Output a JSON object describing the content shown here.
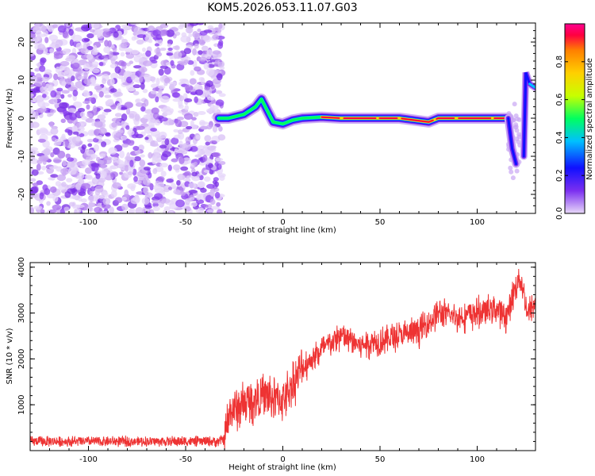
{
  "title": "KOM5.2026.053.11.07.G03",
  "chart_data": [
    {
      "type": "heatmap",
      "name": "spectrogram",
      "xlabel": "Height of straight line (km)",
      "ylabel": "Frequency (Hz)",
      "xlim": [
        -130,
        130
      ],
      "ylim": [
        -25,
        25
      ],
      "xticks": [
        "-100",
        "-50",
        "0",
        "50",
        "100"
      ],
      "yticks": [
        "-20",
        "-10",
        "0",
        "10",
        "20"
      ],
      "colorbar": {
        "label": "Normalized spectral amplitude",
        "range": [
          0.0,
          1.0
        ],
        "ticks": [
          "0.0",
          "0.2",
          "0.4",
          "0.6",
          "0.8"
        ],
        "colormap": [
          "#e8d8f8",
          "#7b2ff0",
          "#1010ff",
          "#00c0ff",
          "#00ff60",
          "#c8ff00",
          "#ffd000",
          "#ff8000",
          "#ff0040",
          "#ff0090"
        ]
      },
      "noise_region_km": [
        -130,
        -33
      ],
      "signal_track": [
        {
          "x": -33,
          "f": 0
        },
        {
          "x": -28,
          "f": 0
        },
        {
          "x": -20,
          "f": 1
        },
        {
          "x": -14,
          "f": 3
        },
        {
          "x": -11,
          "f": 5
        },
        {
          "x": -8,
          "f": 2
        },
        {
          "x": -5,
          "f": -1
        },
        {
          "x": 0,
          "f": -1.5
        },
        {
          "x": 5,
          "f": -0.5
        },
        {
          "x": 10,
          "f": 0
        },
        {
          "x": 20,
          "f": 0.3
        },
        {
          "x": 30,
          "f": 0
        },
        {
          "x": 60,
          "f": 0
        },
        {
          "x": 75,
          "f": -1
        },
        {
          "x": 80,
          "f": 0
        },
        {
          "x": 100,
          "f": 0
        },
        {
          "x": 116,
          "f": 0
        }
      ],
      "drop_track": [
        {
          "x": 116,
          "f": 0
        },
        {
          "x": 118,
          "f": -8
        },
        {
          "x": 120,
          "f": -12
        }
      ],
      "right_edge_track": [
        {
          "x": 124,
          "f": -10
        },
        {
          "x": 125,
          "f": 12
        },
        {
          "x": 127,
          "f": 9
        },
        {
          "x": 130,
          "f": 8
        }
      ]
    },
    {
      "type": "line",
      "name": "snr",
      "xlabel": "Height of straight line (km)",
      "ylabel": "SNR (10 * v/v)",
      "xlim": [
        -130,
        130
      ],
      "ylim": [
        0,
        4100
      ],
      "xticks": [
        "-100",
        "-50",
        "0",
        "50",
        "100"
      ],
      "yticks": [
        "1000",
        "2000",
        "3000",
        "4000"
      ],
      "color": "#ee3333",
      "series": [
        {
          "name": "SNR",
          "x": [
            -130,
            -33,
            -30,
            -27,
            -20,
            -10,
            0,
            10,
            20,
            30,
            40,
            50,
            60,
            70,
            80,
            90,
            100,
            110,
            115,
            120,
            122,
            124,
            126,
            130
          ],
          "values": [
            200,
            200,
            250,
            850,
            1000,
            1200,
            1100,
            1800,
            2200,
            2500,
            2300,
            2400,
            2500,
            2600,
            3000,
            2900,
            3000,
            3100,
            2900,
            3600,
            3800,
            3400,
            3000,
            3200
          ]
        }
      ]
    }
  ]
}
